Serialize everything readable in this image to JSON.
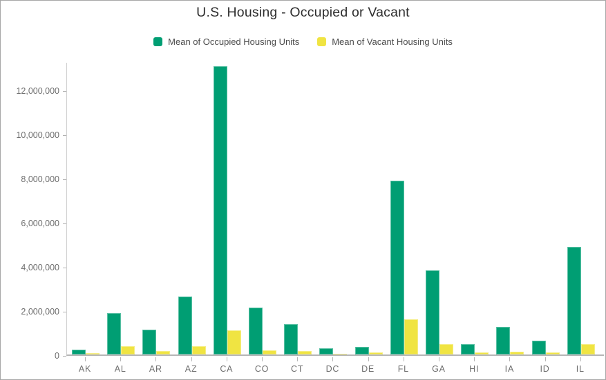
{
  "chart_data": {
    "type": "bar",
    "title": "U.S. Housing - Occupied or Vacant",
    "categories": [
      "AK",
      "AL",
      "AR",
      "AZ",
      "CA",
      "CO",
      "CT",
      "DC",
      "DE",
      "FL",
      "GA",
      "HI",
      "IA",
      "ID",
      "IL"
    ],
    "series": [
      {
        "name": "Mean of Occupied Housing Units",
        "color": "#009E73",
        "values": [
          225000,
          1860000,
          1130000,
          2620000,
          13050000,
          2110000,
          1360000,
          285000,
          350000,
          7880000,
          3805000,
          455000,
          1255000,
          620000,
          4870000
        ]
      },
      {
        "name": "Mean of Vacant Housing Units",
        "color": "#F0E442",
        "values": [
          70000,
          370000,
          170000,
          370000,
          1080000,
          195000,
          150000,
          40000,
          90000,
          1600000,
          475000,
          95000,
          130000,
          80000,
          455000
        ]
      }
    ],
    "xlabel": "",
    "ylabel": "",
    "ylim": [
      0,
      13280000
    ],
    "ytick_values": [
      0,
      2000000,
      4000000,
      6000000,
      8000000,
      10000000,
      12000000
    ],
    "legend_position": "top",
    "grid": false,
    "axis_colors": {
      "tick_label": "#6e6e6e",
      "axis_line": "#cfcfcf",
      "baseline": "#b5b5b5"
    }
  }
}
